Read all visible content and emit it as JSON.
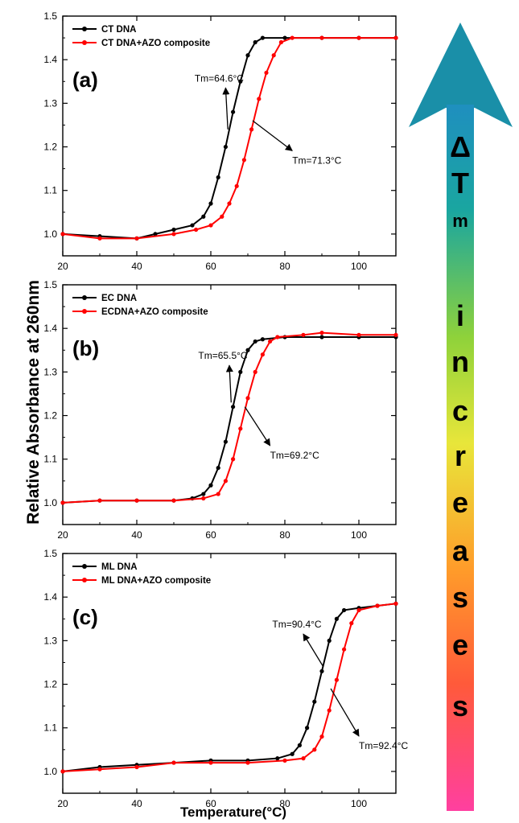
{
  "figure": {
    "ylabel": "Relative Absorbance  at 260nm",
    "xlabel": "Temperature(°C)",
    "arrow_symbol": "Δ",
    "arrow_letters": [
      "T",
      "m",
      "i",
      "n",
      "c",
      "r",
      "e",
      "a",
      "s",
      "e",
      "s"
    ]
  },
  "chart_data": [
    {
      "type": "line",
      "panel_label": "(a)",
      "xlim": [
        20,
        110
      ],
      "ylim": [
        0.95,
        1.5
      ],
      "x_ticks": [
        20,
        40,
        60,
        80,
        100
      ],
      "y_ticks": [
        1.0,
        1.1,
        1.2,
        1.3,
        1.4,
        1.5
      ],
      "x_tick_labels": [
        "20",
        "40",
        "60",
        "80",
        "100"
      ],
      "y_tick_labels": [
        "1.0",
        "1.1",
        "1.2",
        "1.3",
        "1.4",
        "1.5"
      ],
      "series": [
        {
          "name": "CT DNA",
          "color": "#000000",
          "points": [
            [
              20,
              1.0
            ],
            [
              30,
              0.995
            ],
            [
              40,
              0.99
            ],
            [
              45,
              1.0
            ],
            [
              50,
              1.01
            ],
            [
              55,
              1.02
            ],
            [
              58,
              1.04
            ],
            [
              60,
              1.07
            ],
            [
              62,
              1.13
            ],
            [
              64,
              1.2
            ],
            [
              66,
              1.28
            ],
            [
              68,
              1.35
            ],
            [
              70,
              1.41
            ],
            [
              72,
              1.44
            ],
            [
              74,
              1.45
            ],
            [
              80,
              1.45
            ],
            [
              90,
              1.45
            ],
            [
              100,
              1.45
            ],
            [
              110,
              1.45
            ]
          ]
        },
        {
          "name": "CT DNA+AZO composite",
          "color": "#ff0000",
          "points": [
            [
              20,
              1.0
            ],
            [
              30,
              0.99
            ],
            [
              40,
              0.99
            ],
            [
              50,
              1.0
            ],
            [
              56,
              1.01
            ],
            [
              60,
              1.02
            ],
            [
              63,
              1.04
            ],
            [
              65,
              1.07
            ],
            [
              67,
              1.11
            ],
            [
              69,
              1.17
            ],
            [
              71,
              1.24
            ],
            [
              73,
              1.31
            ],
            [
              75,
              1.37
            ],
            [
              77,
              1.41
            ],
            [
              79,
              1.44
            ],
            [
              82,
              1.45
            ],
            [
              90,
              1.45
            ],
            [
              100,
              1.45
            ],
            [
              110,
              1.45
            ]
          ]
        }
      ],
      "annotations": [
        {
          "text": "Tm=64.6°C",
          "x": 64.6,
          "y": 1.24,
          "tx": 64,
          "ty": 1.35
        },
        {
          "text": "Tm=71.3°C",
          "x": 71.3,
          "y": 1.26,
          "tx": 82,
          "ty": 1.18
        }
      ]
    },
    {
      "type": "line",
      "panel_label": "(b)",
      "xlim": [
        20,
        110
      ],
      "ylim": [
        0.95,
        1.5
      ],
      "x_ticks": [
        20,
        40,
        60,
        80,
        100
      ],
      "y_ticks": [
        1.0,
        1.1,
        1.2,
        1.3,
        1.4,
        1.5
      ],
      "x_tick_labels": [
        "20",
        "40",
        "60",
        "80",
        "100"
      ],
      "y_tick_labels": [
        "1.0",
        "1.1",
        "1.2",
        "1.3",
        "1.4",
        "1.5"
      ],
      "series": [
        {
          "name": "EC DNA",
          "color": "#000000",
          "points": [
            [
              20,
              1.0
            ],
            [
              30,
              1.005
            ],
            [
              40,
              1.005
            ],
            [
              50,
              1.005
            ],
            [
              55,
              1.01
            ],
            [
              58,
              1.02
            ],
            [
              60,
              1.04
            ],
            [
              62,
              1.08
            ],
            [
              64,
              1.14
            ],
            [
              66,
              1.22
            ],
            [
              68,
              1.3
            ],
            [
              70,
              1.35
            ],
            [
              72,
              1.37
            ],
            [
              74,
              1.375
            ],
            [
              80,
              1.38
            ],
            [
              90,
              1.38
            ],
            [
              100,
              1.38
            ],
            [
              110,
              1.38
            ]
          ]
        },
        {
          "name": "ECDNA+AZO composite",
          "color": "#ff0000",
          "points": [
            [
              20,
              1.0
            ],
            [
              30,
              1.005
            ],
            [
              40,
              1.005
            ],
            [
              50,
              1.005
            ],
            [
              58,
              1.01
            ],
            [
              62,
              1.02
            ],
            [
              64,
              1.05
            ],
            [
              66,
              1.1
            ],
            [
              68,
              1.17
            ],
            [
              70,
              1.24
            ],
            [
              72,
              1.3
            ],
            [
              74,
              1.34
            ],
            [
              76,
              1.37
            ],
            [
              78,
              1.38
            ],
            [
              85,
              1.385
            ],
            [
              90,
              1.39
            ],
            [
              100,
              1.385
            ],
            [
              110,
              1.385
            ]
          ]
        }
      ],
      "annotations": [
        {
          "text": "Tm=65.5°C",
          "x": 65.5,
          "y": 1.23,
          "tx": 65,
          "ty": 1.33
        },
        {
          "text": "Tm=69.2°C",
          "x": 69.2,
          "y": 1.22,
          "tx": 76,
          "ty": 1.12
        }
      ]
    },
    {
      "type": "line",
      "panel_label": "(c)",
      "xlim": [
        20,
        110
      ],
      "ylim": [
        0.95,
        1.5
      ],
      "x_ticks": [
        20,
        40,
        60,
        80,
        100
      ],
      "y_ticks": [
        1.0,
        1.1,
        1.2,
        1.3,
        1.4,
        1.5
      ],
      "x_tick_labels": [
        "20",
        "40",
        "60",
        "80",
        "100"
      ],
      "y_tick_labels": [
        "1.0",
        "1.1",
        "1.2",
        "1.3",
        "1.4",
        "1.5"
      ],
      "series": [
        {
          "name": "ML DNA",
          "color": "#000000",
          "points": [
            [
              20,
              1.0
            ],
            [
              30,
              1.01
            ],
            [
              40,
              1.015
            ],
            [
              50,
              1.02
            ],
            [
              60,
              1.025
            ],
            [
              70,
              1.025
            ],
            [
              78,
              1.03
            ],
            [
              82,
              1.04
            ],
            [
              84,
              1.06
            ],
            [
              86,
              1.1
            ],
            [
              88,
              1.16
            ],
            [
              90,
              1.23
            ],
            [
              92,
              1.3
            ],
            [
              94,
              1.35
            ],
            [
              96,
              1.37
            ],
            [
              100,
              1.375
            ],
            [
              105,
              1.38
            ],
            [
              110,
              1.385
            ]
          ]
        },
        {
          "name": "ML DNA+AZO composite",
          "color": "#ff0000",
          "points": [
            [
              20,
              1.0
            ],
            [
              30,
              1.005
            ],
            [
              40,
              1.01
            ],
            [
              50,
              1.02
            ],
            [
              60,
              1.02
            ],
            [
              70,
              1.02
            ],
            [
              80,
              1.025
            ],
            [
              85,
              1.03
            ],
            [
              88,
              1.05
            ],
            [
              90,
              1.08
            ],
            [
              92,
              1.14
            ],
            [
              94,
              1.21
            ],
            [
              96,
              1.28
            ],
            [
              98,
              1.34
            ],
            [
              100,
              1.37
            ],
            [
              105,
              1.38
            ],
            [
              110,
              1.385
            ]
          ]
        }
      ],
      "annotations": [
        {
          "text": "Tm=90.4°C",
          "x": 90.4,
          "y": 1.24,
          "tx": 85,
          "ty": 1.33
        },
        {
          "text": "Tm=92.4°C",
          "x": 92.4,
          "y": 1.19,
          "tx": 100,
          "ty": 1.07
        }
      ]
    }
  ]
}
